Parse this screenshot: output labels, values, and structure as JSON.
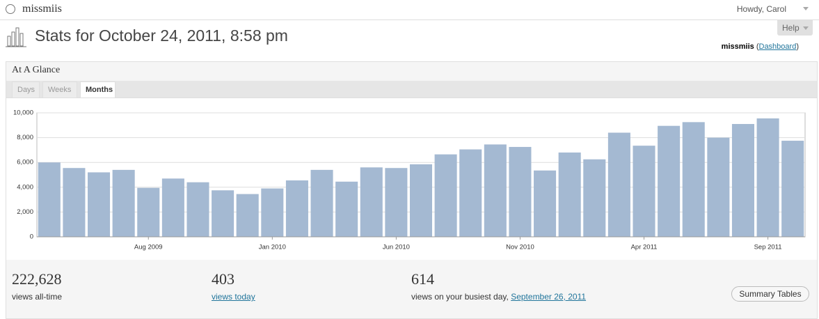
{
  "header": {
    "site": "missmiis",
    "greeting": "Howdy, Carol",
    "title": "Stats for October 24, 2011, 8:58 pm",
    "help": "Help",
    "blog": "missmiis",
    "dashboard": "Dashboard"
  },
  "panel": {
    "title": "At A Glance",
    "tabs": [
      "Days",
      "Weeks",
      "Months"
    ],
    "active_tab": 2,
    "stats": [
      {
        "value": "222,628",
        "label": "views all-time"
      },
      {
        "value": "403",
        "label": "views today"
      },
      {
        "value": "614",
        "label": "views on your busiest day,",
        "link": "September 26, 2011"
      }
    ],
    "button": "Summary Tables"
  },
  "chart_data": {
    "type": "bar",
    "color": "#a4b9d2",
    "grid": true,
    "categories": [
      null,
      null,
      null,
      null,
      "Aug 2009",
      null,
      null,
      null,
      null,
      "Jan 2010",
      null,
      null,
      null,
      null,
      "Jun 2010",
      null,
      null,
      null,
      null,
      "Nov 2010",
      null,
      null,
      null,
      null,
      "Apr 2011",
      null,
      null,
      null,
      null,
      "Sep 2011",
      null
    ],
    "values": [
      6000,
      5550,
      5200,
      5400,
      3950,
      4700,
      4400,
      3750,
      3450,
      3900,
      4550,
      5400,
      4450,
      5600,
      5550,
      5850,
      6650,
      7050,
      7450,
      7250,
      5350,
      6800,
      6250,
      8400,
      7350,
      8950,
      9250,
      8000,
      9100,
      9550,
      7750
    ],
    "ylim": [
      0,
      10000
    ],
    "yticks": [
      0,
      {
        "value": 2000,
        "label": "2,000"
      },
      {
        "value": 4000,
        "label": "4,000"
      },
      {
        "value": 6000,
        "label": "6,000"
      },
      {
        "value": 8000,
        "label": "8,000"
      },
      {
        "value": 10000,
        "label": "10,000"
      }
    ]
  }
}
